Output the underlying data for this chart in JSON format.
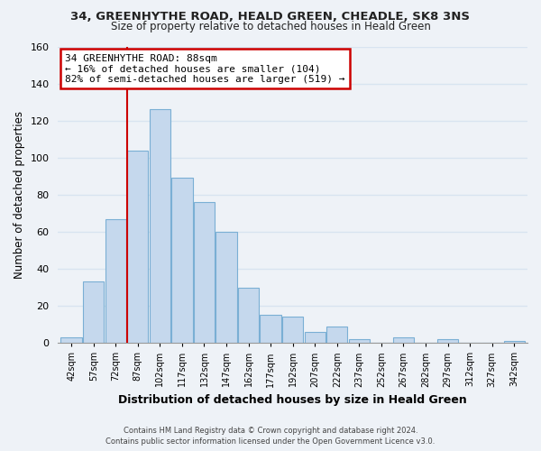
{
  "title_line1": "34, GREENHYTHE ROAD, HEALD GREEN, CHEADLE, SK8 3NS",
  "title_line2": "Size of property relative to detached houses in Heald Green",
  "xlabel": "Distribution of detached houses by size in Heald Green",
  "ylabel": "Number of detached properties",
  "bar_color": "#c5d8ed",
  "bar_edge_color": "#7aafd4",
  "bin_labels": [
    "42sqm",
    "57sqm",
    "72sqm",
    "87sqm",
    "102sqm",
    "117sqm",
    "132sqm",
    "147sqm",
    "162sqm",
    "177sqm",
    "192sqm",
    "207sqm",
    "222sqm",
    "237sqm",
    "252sqm",
    "267sqm",
    "282sqm",
    "297sqm",
    "312sqm",
    "327sqm",
    "342sqm"
  ],
  "bar_heights": [
    3,
    33,
    67,
    104,
    126,
    89,
    76,
    60,
    30,
    15,
    14,
    6,
    9,
    2,
    0,
    3,
    0,
    2,
    0,
    0,
    1
  ],
  "ylim": [
    0,
    160
  ],
  "yticks": [
    0,
    20,
    40,
    60,
    80,
    100,
    120,
    140,
    160
  ],
  "annotation_title": "34 GREENHYTHE ROAD: 88sqm",
  "annotation_line1": "← 16% of detached houses are smaller (104)",
  "annotation_line2": "82% of semi-detached houses are larger (519) →",
  "annotation_box_color": "#ffffff",
  "annotation_box_edge_color": "#cc0000",
  "red_line_color": "#cc0000",
  "footer_line1": "Contains HM Land Registry data © Crown copyright and database right 2024.",
  "footer_line2": "Contains public sector information licensed under the Open Government Licence v3.0.",
  "background_color": "#eef2f7",
  "grid_color": "#d8e4f0"
}
